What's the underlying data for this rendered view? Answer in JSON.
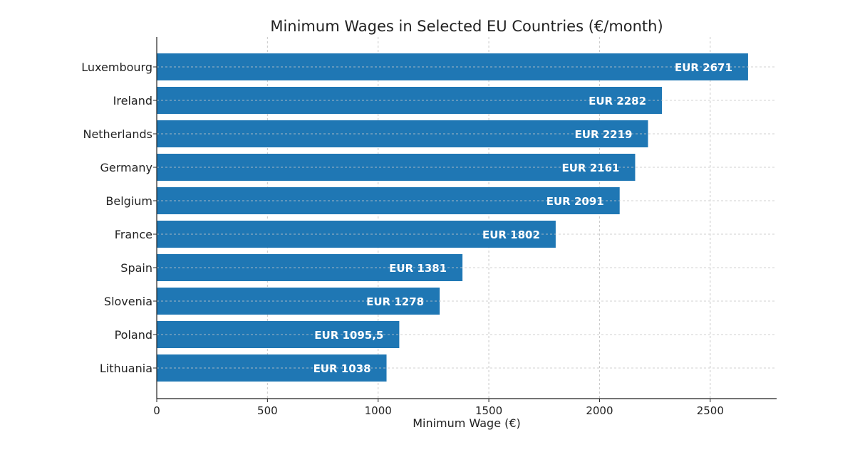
{
  "chart_data": {
    "type": "bar",
    "orientation": "horizontal",
    "title": "Minimum Wages in Selected EU Countries (€/month)",
    "xlabel": "Minimum Wage (€)",
    "ylabel": "",
    "categories": [
      "Luxembourg",
      "Ireland",
      "Netherlands",
      "Germany",
      "Belgium",
      "France",
      "Spain",
      "Slovenia",
      "Poland",
      "Lithuania"
    ],
    "values": [
      2671,
      2282,
      2219,
      2161,
      2091,
      1802,
      1381,
      1278,
      1095.5,
      1038
    ],
    "data_labels": [
      "EUR 2671",
      "EUR 2282",
      "EUR 2219",
      "EUR 2161",
      "EUR 2091",
      "EUR 1802",
      "EUR 1381",
      "EUR 1278",
      "EUR 1095,5",
      "EUR 1038"
    ],
    "xlim": [
      0,
      2800
    ],
    "xticks": [
      0,
      500,
      1000,
      1500,
      2000,
      2500
    ],
    "grid": true,
    "bar_color": "#1f77b4",
    "label_color": "#ffffff"
  }
}
